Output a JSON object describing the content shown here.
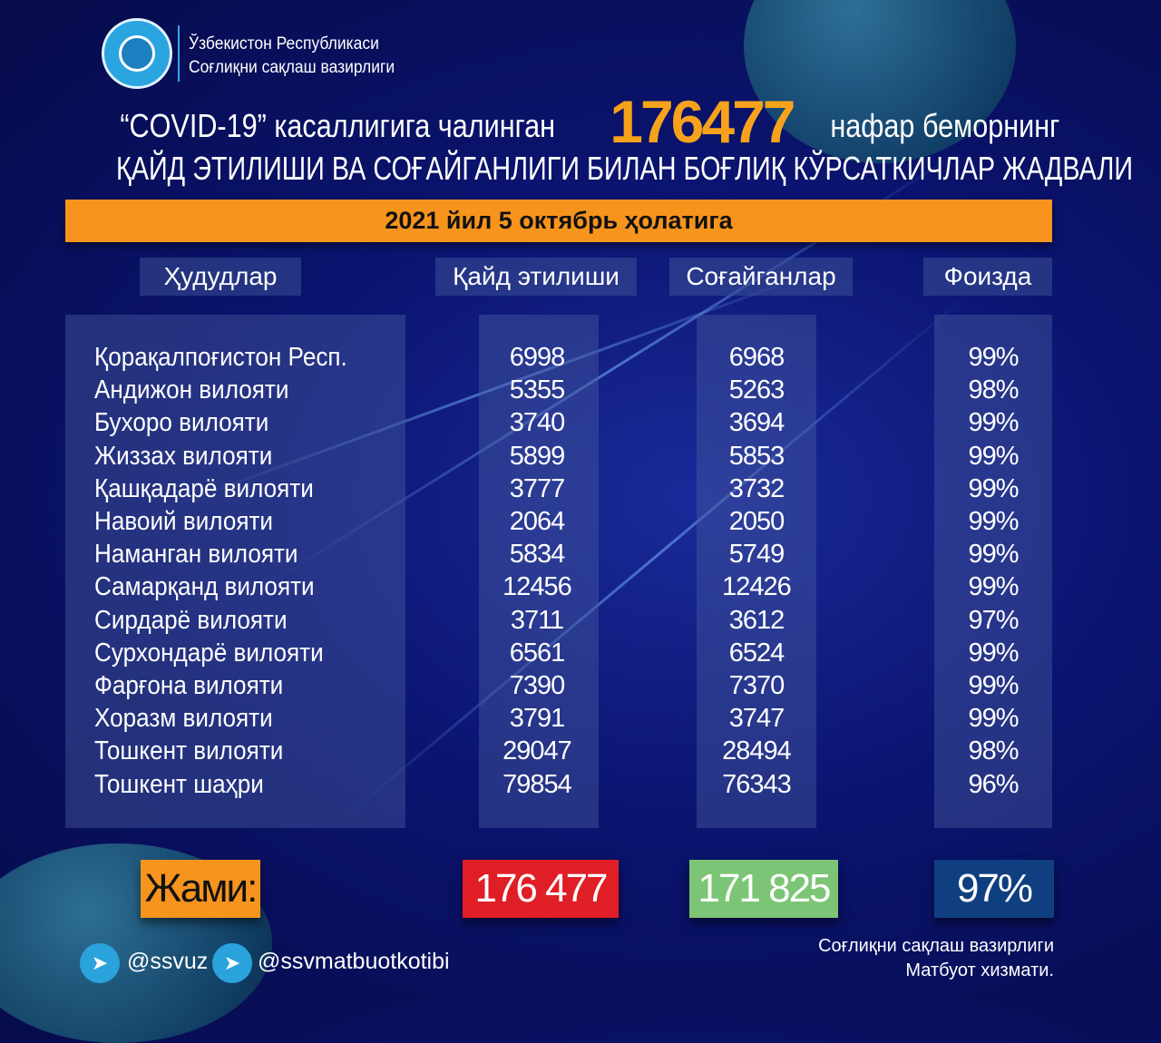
{
  "header": {
    "org_line1": "Ўзбекистон Республикаси",
    "org_line2": "Соғлиқни сақлаш вазирлиги",
    "title_prefix": "“COVID-19” касаллигига чалинган",
    "title_number": "176477",
    "title_suffix": "нафар беморнинг",
    "title_line2": "ҚАЙД ЭТИЛИШИ ВА СОҒАЙГАНЛИГИ БИЛАН БОҒЛИҚ КЎРСАТКИЧЛАР ЖАДВАЛИ",
    "date": "2021 йил 5 октябрь ҳолатига"
  },
  "table": {
    "columns": [
      "Ҳудудлар",
      "Қайд этилиши",
      "Соғайганлар",
      "Фоизда"
    ],
    "rows": [
      [
        "Қорақалпоғистон Респ.",
        "6998",
        "6968",
        "99%"
      ],
      [
        "Андижон вилояти",
        "5355",
        "5263",
        "98%"
      ],
      [
        "Бухоро вилояти",
        "3740",
        "3694",
        "99%"
      ],
      [
        "Жиззах вилояти",
        "5899",
        "5853",
        "99%"
      ],
      [
        "Қашқадарё вилояти",
        "3777",
        "3732",
        "99%"
      ],
      [
        "Навоий вилояти",
        "2064",
        "2050",
        "99%"
      ],
      [
        "Наманган вилояти",
        "5834",
        "5749",
        "99%"
      ],
      [
        "Самарқанд вилояти",
        "12456",
        "12426",
        "99%"
      ],
      [
        "Сирдарё вилояти",
        "3711",
        "3612",
        "97%"
      ],
      [
        "Сурхондарё вилояти",
        "6561",
        "6524",
        "99%"
      ],
      [
        "Фарғона вилояти",
        "7390",
        "7370",
        "99%"
      ],
      [
        "Хоразм вилояти",
        "3791",
        "3747",
        "99%"
      ],
      [
        "Тошкент вилояти",
        "29047",
        "28494",
        "98%"
      ],
      [
        "Тошкент шаҳри",
        "79854",
        "76343",
        "96%"
      ]
    ]
  },
  "totals": {
    "label": "Жами:",
    "registered": "176 477",
    "recovered": "171 825",
    "percent": "97%"
  },
  "colors": {
    "orange": "#f7941d",
    "red": "#e01e26",
    "green": "#7cc576",
    "blue": "#0f3f80"
  },
  "footer": {
    "handle1": "@ssvuz",
    "handle2": "@ssvmatbuotkotibi",
    "press_line1": "Соғлиқни сақлаш вазирлиги",
    "press_line2": "Матбуот хизмати.",
    "icon": "telegram-icon"
  }
}
